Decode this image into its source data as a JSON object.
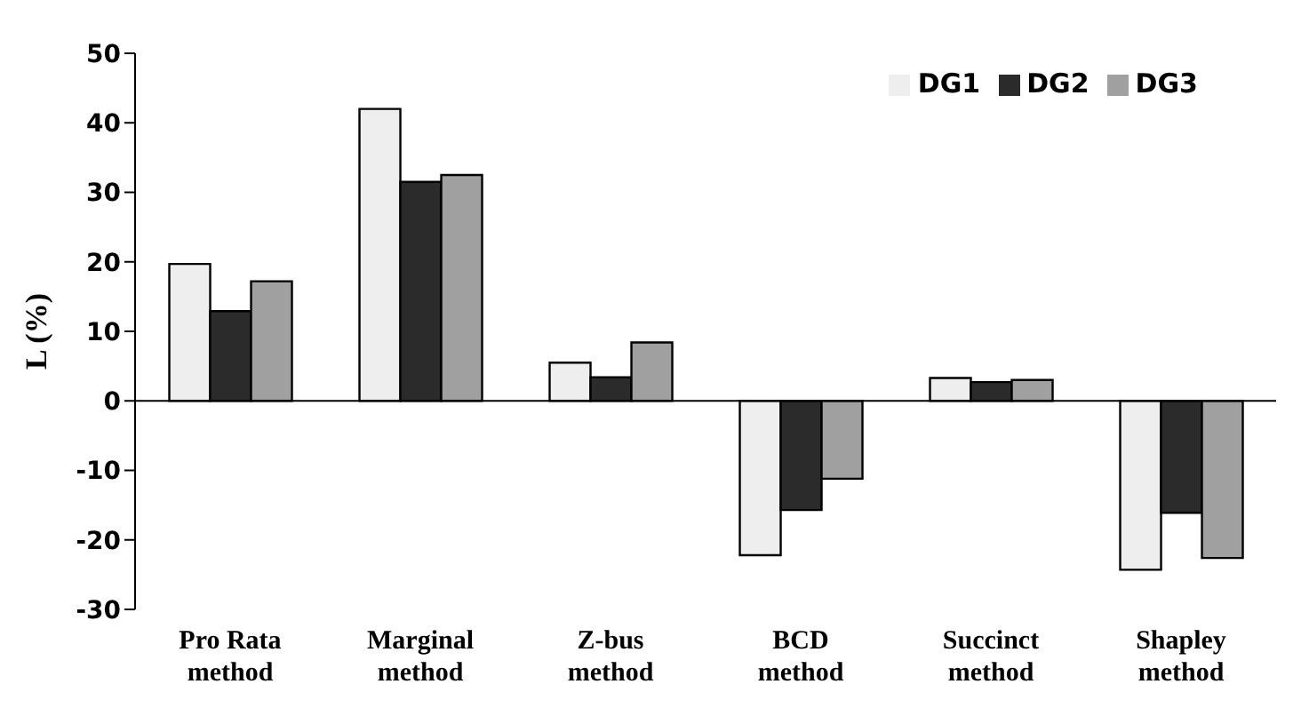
{
  "chart_data": {
    "type": "bar",
    "ylabel": "L (%)",
    "categories": [
      "Pro Rata method",
      "Marginal method",
      "Z-bus method",
      "BCD method",
      "Succinct method",
      "Shapley method"
    ],
    "series": [
      {
        "name": "DG1",
        "color": "#eeeeee",
        "values": [
          19.7,
          42.0,
          5.5,
          -22.2,
          3.3,
          -24.3
        ]
      },
      {
        "name": "DG2",
        "color": "#2b2b2b",
        "values": [
          12.9,
          31.5,
          3.4,
          -15.7,
          2.7,
          -16.1
        ]
      },
      {
        "name": "DG3",
        "color": "#a0a0a0",
        "values": [
          17.2,
          32.5,
          8.4,
          -11.2,
          3.0,
          -22.6
        ]
      }
    ],
    "ylim": [
      -30,
      50
    ],
    "yticks": [
      -30,
      -20,
      -10,
      0,
      10,
      20,
      30,
      40,
      50
    ],
    "legend": "top right"
  }
}
